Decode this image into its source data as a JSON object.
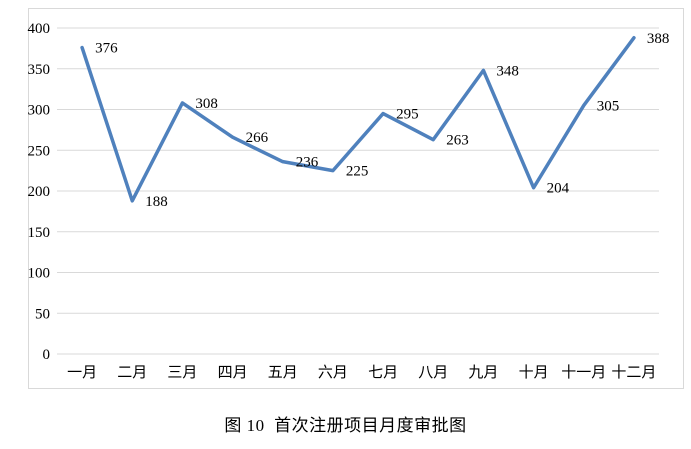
{
  "chart_data": {
    "type": "line",
    "title": "图 10  首次注册项目月度审批图",
    "categories": [
      "一月",
      "二月",
      "三月",
      "四月",
      "五月",
      "六月",
      "七月",
      "八月",
      "九月",
      "十月",
      "十一月",
      "十二月"
    ],
    "series": [
      {
        "name": "首次注册项目月度审批",
        "values": [
          376,
          188,
          308,
          266,
          236,
          225,
          295,
          263,
          348,
          204,
          305,
          388
        ]
      }
    ],
    "xlabel": "",
    "ylabel": "",
    "ylim": [
      0,
      400
    ],
    "yticks": [
      0,
      50,
      100,
      150,
      200,
      250,
      300,
      350,
      400
    ],
    "grid": true,
    "legend_position": "none",
    "data_labels": true,
    "colors": {
      "line": "#4F81BD",
      "gridline": "#D9D9D9",
      "frame_border": "#D9D9D9",
      "text": "#000000",
      "background": "#FFFFFF"
    }
  }
}
